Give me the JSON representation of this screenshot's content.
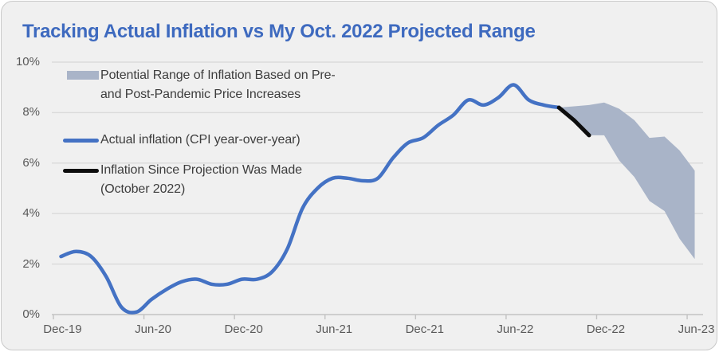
{
  "card": {
    "title": "Tracking Actual Inflation vs My Oct. 2022 Projected Range"
  },
  "legend": {
    "items": [
      {
        "swatch": "range-band-swatch",
        "lines": [
          "Potential Range of Inflation Based on Pre-",
          "and Post-Pandemic Price Increases"
        ]
      },
      {
        "swatch": "actual-line-swatch",
        "lines": [
          "Actual inflation (CPI year-over-year)"
        ]
      },
      {
        "swatch": "since-projection-line-swatch",
        "lines": [
          "Inflation Since Projection Was Made",
          "(October 2022)"
        ]
      }
    ]
  },
  "colors": {
    "title_blue": "#3E6ABF",
    "line_blue": "#4472C4",
    "line_black": "#0D0D0D",
    "band_gray_blue": "#A9B4C8",
    "grid": "#DADADA",
    "axis": "#C2C2C2",
    "axis_text": "#595959",
    "legend_text": "#3D3D3D",
    "card_bg": "#F0F0F0",
    "card_border": "#C9C9C9"
  },
  "chart_data": {
    "type": "line",
    "title": "Tracking Actual Inflation vs My Oct. 2022 Projected Range",
    "xlabel": "",
    "ylabel": "",
    "ylim": [
      0,
      10
    ],
    "grid": "horizontal",
    "legend_position": "top-left",
    "y_tick_values": [
      0,
      2,
      4,
      6,
      8,
      10
    ],
    "y_tick_labels": [
      "0%",
      "2%",
      "4%",
      "6%",
      "8%",
      "10%"
    ],
    "x_axis_tick_labels": [
      "Dec-19",
      "Jun-20",
      "Dec-20",
      "Jun-21",
      "Dec-21",
      "Jun-22",
      "Dec-22",
      "Jun-23"
    ],
    "x_axis_tick_every_months": 6,
    "categories": [
      "Dec-19",
      "Jan-20",
      "Feb-20",
      "Mar-20",
      "Apr-20",
      "May-20",
      "Jun-20",
      "Jul-20",
      "Aug-20",
      "Sep-20",
      "Oct-20",
      "Nov-20",
      "Dec-20",
      "Jan-21",
      "Feb-21",
      "Mar-21",
      "Apr-21",
      "May-21",
      "Jun-21",
      "Jul-21",
      "Aug-21",
      "Sep-21",
      "Oct-21",
      "Nov-21",
      "Dec-21",
      "Jan-22",
      "Feb-22",
      "Mar-22",
      "Apr-22",
      "May-22",
      "Jun-22",
      "Jul-22",
      "Aug-22",
      "Sep-22",
      "Oct-22",
      "Nov-22",
      "Dec-22",
      "Jan-23",
      "Feb-23",
      "Mar-23",
      "Apr-23",
      "May-23",
      "Jun-23"
    ],
    "series": [
      {
        "name": "Potential Range of Inflation Based on Pre- and Post-Pandemic Price Increases",
        "type": "band",
        "color": "#A9B4C8",
        "start_index": 33,
        "top": [
          8.2,
          8.25,
          8.3,
          8.4,
          8.15,
          7.7,
          7.0,
          7.05,
          6.5,
          5.7
        ],
        "bottom": [
          8.2,
          7.7,
          7.1,
          7.1,
          6.1,
          5.45,
          4.5,
          4.1,
          3.0,
          2.2
        ]
      },
      {
        "name": "Actual inflation (CPI year-over-year)",
        "type": "line",
        "smooth": true,
        "color": "#4472C4",
        "width": 4.5,
        "start_index": 0,
        "values": [
          2.3,
          2.5,
          2.3,
          1.5,
          0.3,
          0.1,
          0.6,
          1.0,
          1.3,
          1.4,
          1.2,
          1.2,
          1.4,
          1.4,
          1.7,
          2.6,
          4.2,
          5.0,
          5.4,
          5.4,
          5.3,
          5.4,
          6.2,
          6.8,
          7.0,
          7.5,
          7.9,
          8.5,
          8.3,
          8.6,
          9.1,
          8.5,
          8.3,
          8.2
        ]
      },
      {
        "name": "Inflation Since Projection Was Made (October 2022)",
        "type": "line",
        "smooth": false,
        "color": "#0D0D0D",
        "width": 5,
        "start_index": 33,
        "values": [
          8.2,
          7.7,
          7.1
        ]
      }
    ]
  }
}
